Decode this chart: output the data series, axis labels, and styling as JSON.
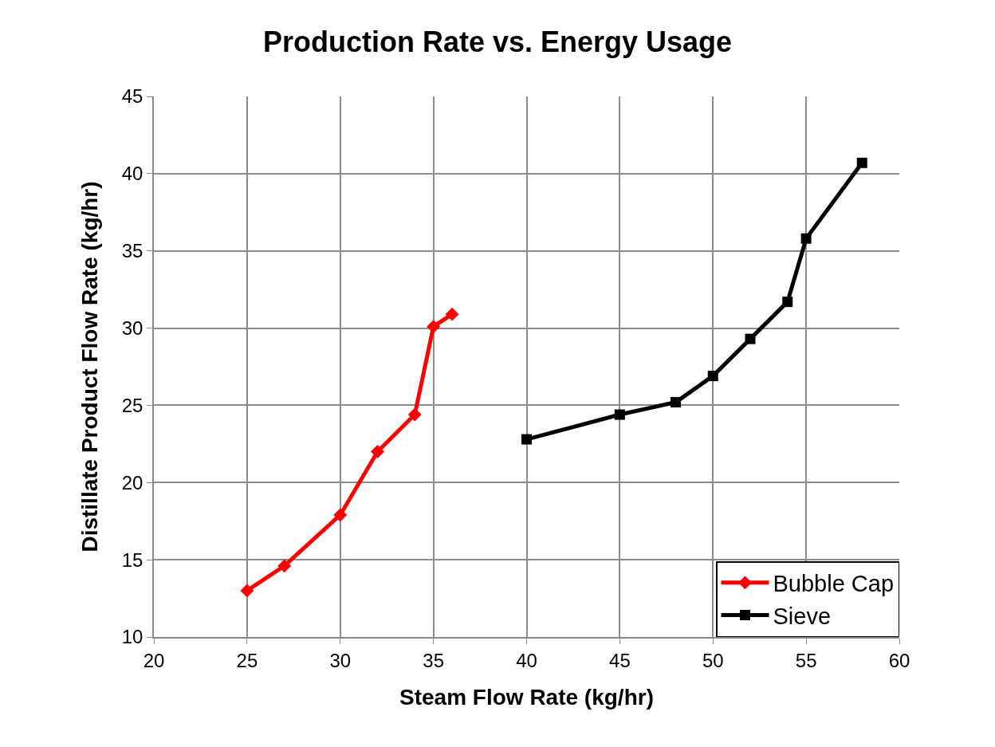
{
  "chart_data": {
    "type": "line",
    "title": "Production Rate vs. Energy Usage",
    "xlabel": "Steam Flow Rate (kg/hr)",
    "ylabel": "Distillate Product Flow Rate (kg/hr)",
    "series": [
      {
        "name": "Bubble Cap",
        "color": "#ff0000",
        "marker": "diamond",
        "x": [
          25,
          27,
          30,
          32,
          34,
          35,
          36
        ],
        "values": [
          13.0,
          14.6,
          17.9,
          22.0,
          24.4,
          30.1,
          30.9
        ]
      },
      {
        "name": "Sieve",
        "color": "#000000",
        "marker": "square",
        "x": [
          40,
          45,
          48,
          50,
          52,
          54,
          55,
          58
        ],
        "values": [
          22.8,
          24.4,
          25.2,
          26.9,
          29.3,
          31.7,
          35.8,
          40.7
        ]
      }
    ],
    "xlim": [
      20,
      60
    ],
    "xticks": [
      20,
      25,
      30,
      35,
      40,
      45,
      50,
      55,
      60
    ],
    "ylim": [
      10,
      45
    ],
    "yticks": [
      10,
      15,
      20,
      25,
      30,
      35,
      40,
      45
    ],
    "grid": true,
    "legend": "bottom right",
    "line_style": "solid"
  }
}
